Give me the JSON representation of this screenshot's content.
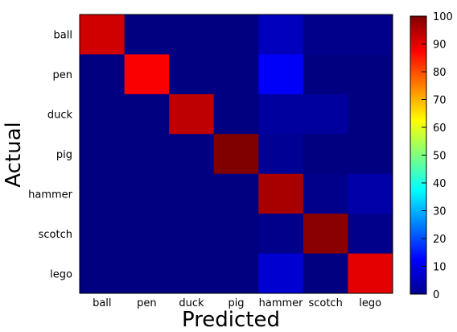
{
  "chart_data": {
    "type": "heatmap",
    "title": "",
    "xlabel": "Predicted",
    "ylabel": "Actual",
    "x_categories": [
      "ball",
      "pen",
      "duck",
      "pig",
      "hammer",
      "scotch",
      "lego"
    ],
    "y_categories": [
      "ball",
      "pen",
      "duck",
      "pig",
      "hammer",
      "scotch",
      "lego"
    ],
    "values": [
      [
        92,
        0,
        0,
        0,
        6,
        1,
        1
      ],
      [
        0,
        88,
        0,
        0,
        12,
        0,
        0
      ],
      [
        0,
        0,
        94,
        0,
        3,
        3,
        0
      ],
      [
        0,
        0,
        0,
        100,
        2,
        0,
        0
      ],
      [
        0,
        0,
        0,
        0,
        96,
        1,
        4
      ],
      [
        0,
        0,
        0,
        0,
        1,
        99,
        1
      ],
      [
        0,
        0,
        0,
        0,
        8,
        0,
        90
      ]
    ],
    "colorbar": {
      "min": 0,
      "max": 100,
      "ticks": [
        0,
        10,
        20,
        30,
        40,
        50,
        60,
        70,
        80,
        90,
        100
      ],
      "colormap": "jet"
    },
    "grid": false
  }
}
